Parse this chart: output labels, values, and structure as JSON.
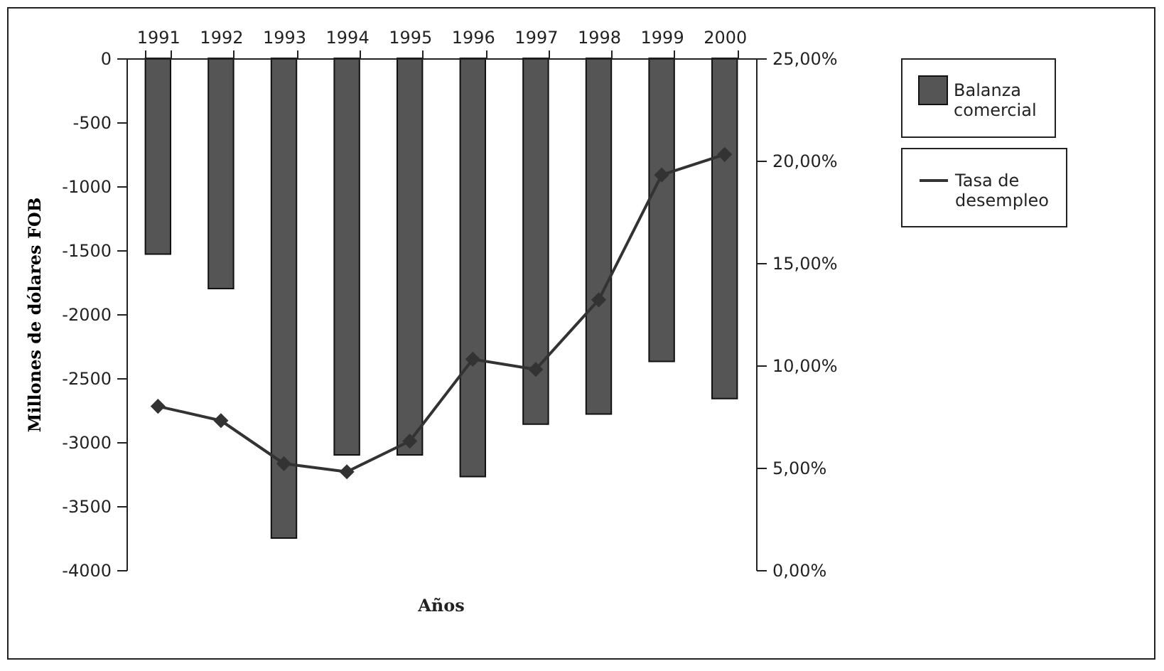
{
  "chart_data": {
    "type": "bar",
    "categories": [
      "1991",
      "1992",
      "1993",
      "1994",
      "1995",
      "1996",
      "1997",
      "1998",
      "1999",
      "2000"
    ],
    "series": [
      {
        "name": "Balanza comercial",
        "color": "#555555",
        "values": [
          -1530,
          -1800,
          -3750,
          -3100,
          -3100,
          -3270,
          -2860,
          -2780,
          -2370,
          -2660
        ]
      },
      {
        "name": "Tasa de desempleo",
        "type": "line",
        "axis": "y2",
        "color": "#333333",
        "values": [
          8.0,
          7.3,
          5.2,
          4.8,
          6.3,
          10.3,
          9.8,
          13.2,
          19.3,
          20.3
        ]
      }
    ],
    "xlabel": "Años",
    "ylabel": "Millones de dólares FOB",
    "ylim": [
      -4000,
      0
    ],
    "yticks": [
      -4000,
      -3500,
      -3000,
      -2500,
      -2000,
      -1500,
      -1000,
      -500,
      0
    ],
    "y2lim": [
      0,
      25
    ],
    "y2ticks": [
      {
        "value": 0,
        "label": "0,00%"
      },
      {
        "value": 5,
        "label": "5,00%"
      },
      {
        "value": 10,
        "label": "10,00%"
      },
      {
        "value": 15,
        "label": "15,00%"
      },
      {
        "value": 20,
        "label": "20,00%"
      },
      {
        "value": 25,
        "label": "25,00%"
      }
    ],
    "legend": "right",
    "marker": "diamond",
    "line_style": "solid",
    "grid": false
  }
}
